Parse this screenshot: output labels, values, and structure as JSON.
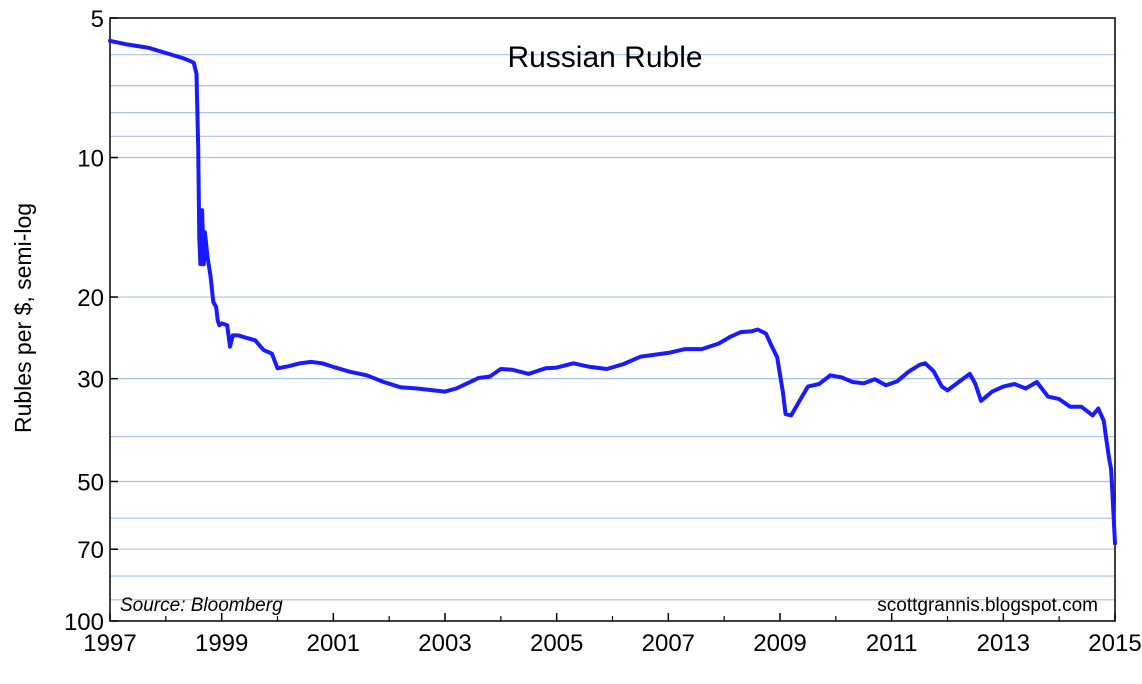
{
  "chart_data": {
    "type": "line",
    "title": "Russian Ruble",
    "ylabel": "Rubles per $, semi-log",
    "xlabel": "",
    "y_scale": "log",
    "y_inverted": true,
    "ylim": [
      5,
      100
    ],
    "xlim": [
      1997,
      2015
    ],
    "grid": true,
    "line_color": "#1a1aff",
    "grid_color": "#a9c3e3",
    "x_ticks": [
      "1997",
      "1999",
      "2001",
      "2003",
      "2005",
      "2007",
      "2009",
      "2011",
      "2013",
      "2015"
    ],
    "y_ticks": [
      {
        "value": 5,
        "label": "5"
      },
      {
        "value": 10,
        "label": "10"
      },
      {
        "value": 20,
        "label": "20"
      },
      {
        "value": 30,
        "label": "30"
      },
      {
        "value": 50,
        "label": "50"
      },
      {
        "value": 70,
        "label": "70"
      },
      {
        "value": 100,
        "label": "100"
      }
    ],
    "y_gridlines": [
      5,
      6,
      7,
      8,
      9,
      10,
      20,
      30,
      40,
      50,
      60,
      70,
      80,
      90,
      100
    ],
    "series": [
      {
        "x": [
          1997.0,
          1997.3,
          1997.7,
          1998.0,
          1998.3,
          1998.45,
          1998.5,
          1998.55,
          1998.58,
          1998.6,
          1998.62,
          1998.65,
          1998.68,
          1998.7,
          1998.75,
          1998.8,
          1998.85,
          1998.9,
          1998.93,
          1998.96,
          1999.0,
          1999.1,
          1999.15,
          1999.2,
          1999.3,
          1999.45,
          1999.6,
          1999.75,
          1999.9,
          2000.0,
          2000.2,
          2000.4,
          2000.6,
          2000.8,
          2001.0,
          2001.3,
          2001.6,
          2001.9,
          2002.2,
          2002.5,
          2002.8,
          2003.0,
          2003.2,
          2003.4,
          2003.6,
          2003.8,
          2004.0,
          2004.2,
          2004.5,
          2004.8,
          2005.0,
          2005.3,
          2005.6,
          2005.9,
          2006.2,
          2006.5,
          2006.8,
          2007.0,
          2007.3,
          2007.6,
          2007.9,
          2008.1,
          2008.3,
          2008.5,
          2008.6,
          2008.75,
          2008.85,
          2008.95,
          2009.05,
          2009.1,
          2009.2,
          2009.35,
          2009.5,
          2009.7,
          2009.9,
          2010.1,
          2010.3,
          2010.5,
          2010.7,
          2010.9,
          2011.1,
          2011.3,
          2011.5,
          2011.6,
          2011.75,
          2011.9,
          2012.0,
          2012.2,
          2012.4,
          2012.5,
          2012.6,
          2012.8,
          2013.0,
          2013.2,
          2013.4,
          2013.6,
          2013.8,
          2014.0,
          2014.2,
          2014.4,
          2014.6,
          2014.7,
          2014.8,
          2014.85,
          2014.9,
          2014.93,
          2014.96,
          2015.0
        ],
        "values": [
          5.6,
          5.7,
          5.8,
          5.95,
          6.1,
          6.2,
          6.25,
          6.6,
          9.5,
          15.0,
          17.0,
          13.0,
          17.0,
          14.5,
          16.5,
          18.0,
          20.5,
          21.0,
          22.5,
          23.0,
          22.8,
          23.0,
          25.6,
          24.2,
          24.2,
          24.5,
          24.8,
          26.0,
          26.5,
          28.5,
          28.2,
          27.8,
          27.6,
          27.8,
          28.3,
          29.0,
          29.5,
          30.5,
          31.3,
          31.5,
          31.8,
          32.0,
          31.5,
          30.7,
          29.9,
          29.7,
          28.6,
          28.7,
          29.3,
          28.5,
          28.4,
          27.8,
          28.3,
          28.6,
          27.9,
          26.9,
          26.6,
          26.4,
          25.9,
          25.9,
          25.2,
          24.4,
          23.8,
          23.7,
          23.5,
          24.0,
          25.5,
          27.0,
          32.0,
          35.8,
          36.0,
          33.5,
          31.2,
          30.8,
          29.5,
          29.8,
          30.5,
          30.7,
          30.1,
          31.0,
          30.4,
          29.0,
          28.0,
          27.8,
          28.9,
          31.2,
          31.8,
          30.5,
          29.3,
          30.8,
          33.5,
          32.0,
          31.2,
          30.8,
          31.5,
          30.5,
          32.8,
          33.2,
          34.5,
          34.5,
          36.0,
          34.8,
          37.0,
          41.0,
          45.0,
          47.0,
          55.0,
          68.0
        ]
      }
    ],
    "annotations": {
      "source": "Source:  Bloomberg",
      "credit": "scottgrannis.blogspot.com"
    }
  }
}
